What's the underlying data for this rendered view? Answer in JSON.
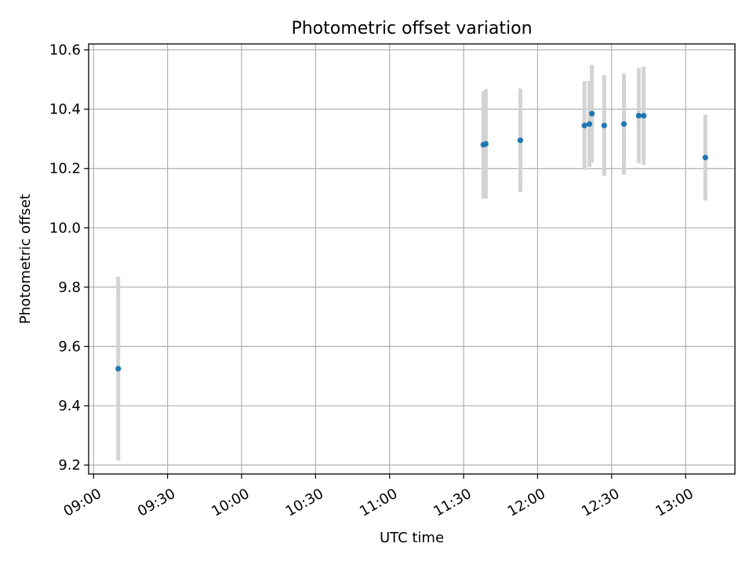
{
  "chart_data": {
    "type": "scatter",
    "title": "Photometric offset variation",
    "xlabel": "UTC time",
    "ylabel": "Photometric offset",
    "x_tick_labels": [
      "09:00",
      "09:30",
      "10:00",
      "10:30",
      "11:00",
      "11:30",
      "12:00",
      "12:30",
      "13:00"
    ],
    "x_ticks": [
      "09:00",
      "09:30",
      "10:00",
      "10:30",
      "11:00",
      "11:30",
      "12:00",
      "12:30",
      "13:00"
    ],
    "xlim": [
      "08:58",
      "13:20"
    ],
    "y_ticks": [
      9.2,
      9.4,
      9.6,
      9.8,
      10.0,
      10.2,
      10.4,
      10.6
    ],
    "y_tick_labels": [
      "9.2",
      "9.4",
      "9.6",
      "9.8",
      "10.0",
      "10.2",
      "10.4",
      "10.6"
    ],
    "ylim": [
      9.17,
      10.62
    ],
    "grid": true,
    "colors": {
      "marker": "#1f77b4",
      "errorbar": "#d3d3d3",
      "grid": "#b0b0b0"
    },
    "series": [
      {
        "points": [
          {
            "x": "09:10",
            "y": 9.525,
            "err": 0.31
          },
          {
            "x": "11:38",
            "y": 10.28,
            "err": 0.18
          },
          {
            "x": "11:39",
            "y": 10.283,
            "err": 0.185
          },
          {
            "x": "11:53",
            "y": 10.295,
            "err": 0.175
          },
          {
            "x": "12:19",
            "y": 10.345,
            "err": 0.15
          },
          {
            "x": "12:21",
            "y": 10.35,
            "err": 0.145
          },
          {
            "x": "12:22",
            "y": 10.385,
            "err": 0.165
          },
          {
            "x": "12:27",
            "y": 10.345,
            "err": 0.17
          },
          {
            "x": "12:35",
            "y": 10.35,
            "err": 0.17
          },
          {
            "x": "12:41",
            "y": 10.378,
            "err": 0.16
          },
          {
            "x": "12:43",
            "y": 10.378,
            "err": 0.165
          },
          {
            "x": "13:08",
            "y": 10.237,
            "err": 0.145
          }
        ]
      }
    ]
  }
}
